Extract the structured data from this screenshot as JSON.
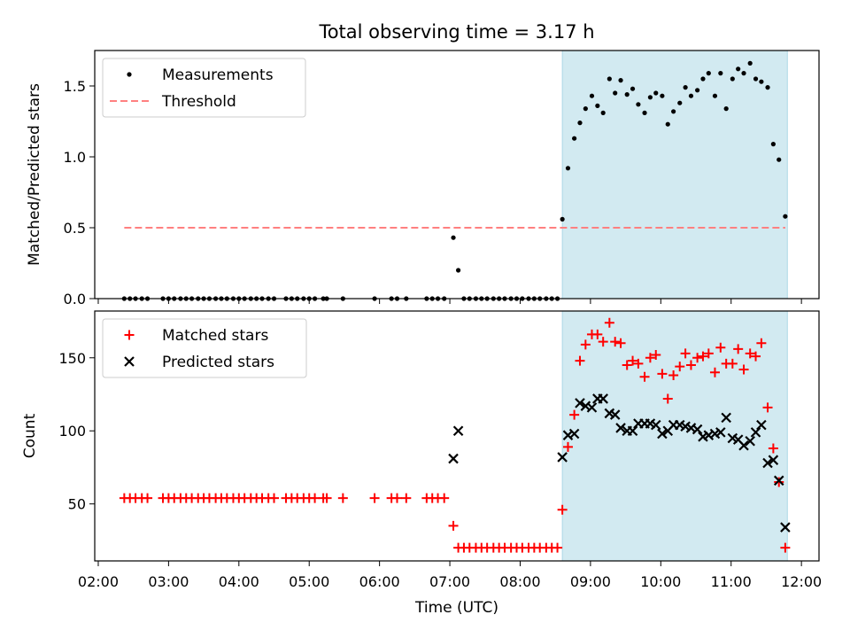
{
  "figure": {
    "title": "Total observing time = 3.17 h",
    "shared_xlabel": "Time (UTC)",
    "x_ticks": [
      "02:00",
      "03:00",
      "04:00",
      "05:00",
      "06:00",
      "07:00",
      "08:00",
      "09:00",
      "10:00",
      "11:00",
      "12:00"
    ]
  },
  "colors": {
    "shade": "#add8e6",
    "measurement": "#000000",
    "threshold": "#ff8080",
    "matched": "#ff0000",
    "predicted": "#000000"
  },
  "chart_data": [
    {
      "type": "scatter",
      "title": "Total observing time = 3.17 h",
      "xlabel": "",
      "ylabel": "Matched/Predicted stars",
      "x_unit": "UTC time (hours)",
      "xlim": [
        1.95,
        12.25
      ],
      "ylim": [
        0.0,
        1.75
      ],
      "y_ticks": [
        0.0,
        0.5,
        1.0,
        1.5
      ],
      "y_tick_labels": [
        "0.0",
        "0.5",
        "1.0",
        "1.5"
      ],
      "shaded_span": [
        8.6,
        11.8
      ],
      "legend_position": "upper-left",
      "grid": false,
      "series": [
        {
          "name": "Measurements",
          "kind": "scatter",
          "points": [
            [
              2.37,
              0
            ],
            [
              2.45,
              0
            ],
            [
              2.53,
              0
            ],
            [
              2.62,
              0
            ],
            [
              2.7,
              0
            ],
            [
              2.92,
              0
            ],
            [
              3.0,
              0
            ],
            [
              3.08,
              0
            ],
            [
              3.17,
              0
            ],
            [
              3.25,
              0
            ],
            [
              3.33,
              0
            ],
            [
              3.42,
              0
            ],
            [
              3.5,
              0
            ],
            [
              3.58,
              0
            ],
            [
              3.67,
              0
            ],
            [
              3.75,
              0
            ],
            [
              3.83,
              0
            ],
            [
              3.92,
              0
            ],
            [
              4.0,
              0
            ],
            [
              4.08,
              0
            ],
            [
              4.17,
              0
            ],
            [
              4.25,
              0
            ],
            [
              4.33,
              0
            ],
            [
              4.42,
              0
            ],
            [
              4.5,
              0
            ],
            [
              4.67,
              0
            ],
            [
              4.75,
              0
            ],
            [
              4.83,
              0
            ],
            [
              4.92,
              0
            ],
            [
              5.0,
              0
            ],
            [
              5.08,
              0
            ],
            [
              5.2,
              0
            ],
            [
              5.25,
              0
            ],
            [
              5.48,
              0
            ],
            [
              5.93,
              0
            ],
            [
              6.17,
              0
            ],
            [
              6.25,
              0
            ],
            [
              6.38,
              0
            ],
            [
              6.67,
              0
            ],
            [
              6.75,
              0
            ],
            [
              6.83,
              0
            ],
            [
              6.92,
              0
            ],
            [
              7.05,
              0.43
            ],
            [
              7.12,
              0.2
            ],
            [
              7.2,
              0
            ],
            [
              7.28,
              0
            ],
            [
              7.37,
              0
            ],
            [
              7.45,
              0
            ],
            [
              7.53,
              0
            ],
            [
              7.62,
              0
            ],
            [
              7.7,
              0
            ],
            [
              7.78,
              0
            ],
            [
              7.87,
              0
            ],
            [
              7.95,
              0
            ],
            [
              8.03,
              0
            ],
            [
              8.12,
              0
            ],
            [
              8.2,
              0
            ],
            [
              8.28,
              0
            ],
            [
              8.37,
              0
            ],
            [
              8.45,
              0
            ],
            [
              8.53,
              0
            ],
            [
              8.6,
              0.56
            ],
            [
              8.68,
              0.92
            ],
            [
              8.77,
              1.13
            ],
            [
              8.85,
              1.24
            ],
            [
              8.93,
              1.34
            ],
            [
              9.02,
              1.43
            ],
            [
              9.1,
              1.36
            ],
            [
              9.18,
              1.31
            ],
            [
              9.27,
              1.55
            ],
            [
              9.35,
              1.45
            ],
            [
              9.43,
              1.54
            ],
            [
              9.52,
              1.44
            ],
            [
              9.6,
              1.48
            ],
            [
              9.68,
              1.37
            ],
            [
              9.77,
              1.31
            ],
            [
              9.85,
              1.42
            ],
            [
              9.93,
              1.45
            ],
            [
              10.02,
              1.43
            ],
            [
              10.1,
              1.23
            ],
            [
              10.18,
              1.32
            ],
            [
              10.27,
              1.38
            ],
            [
              10.35,
              1.49
            ],
            [
              10.43,
              1.43
            ],
            [
              10.52,
              1.47
            ],
            [
              10.6,
              1.55
            ],
            [
              10.68,
              1.59
            ],
            [
              10.77,
              1.43
            ],
            [
              10.85,
              1.59
            ],
            [
              10.93,
              1.34
            ],
            [
              11.02,
              1.55
            ],
            [
              11.1,
              1.62
            ],
            [
              11.18,
              1.59
            ],
            [
              11.27,
              1.66
            ],
            [
              11.35,
              1.55
            ],
            [
              11.43,
              1.53
            ],
            [
              11.52,
              1.49
            ],
            [
              11.6,
              1.09
            ],
            [
              11.68,
              0.98
            ],
            [
              11.77,
              0.58
            ]
          ]
        },
        {
          "name": "Threshold",
          "kind": "dashed-line",
          "points": [
            [
              2.37,
              0.5
            ],
            [
              11.77,
              0.5
            ]
          ]
        }
      ]
    },
    {
      "type": "scatter",
      "title": "",
      "xlabel": "Time (UTC)",
      "ylabel": "Count",
      "x_unit": "UTC time (hours)",
      "xlim": [
        1.95,
        12.25
      ],
      "ylim": [
        11,
        182
      ],
      "y_ticks": [
        50,
        100,
        150
      ],
      "y_tick_labels": [
        "50",
        "100",
        "150"
      ],
      "shaded_span": [
        8.6,
        11.8
      ],
      "legend_position": "upper-left",
      "grid": false,
      "series": [
        {
          "name": "Matched stars",
          "marker": "plus",
          "points": [
            [
              2.37,
              54
            ],
            [
              2.45,
              54
            ],
            [
              2.53,
              54
            ],
            [
              2.62,
              54
            ],
            [
              2.7,
              54
            ],
            [
              2.92,
              54
            ],
            [
              3.0,
              54
            ],
            [
              3.08,
              54
            ],
            [
              3.17,
              54
            ],
            [
              3.25,
              54
            ],
            [
              3.33,
              54
            ],
            [
              3.42,
              54
            ],
            [
              3.5,
              54
            ],
            [
              3.58,
              54
            ],
            [
              3.67,
              54
            ],
            [
              3.75,
              54
            ],
            [
              3.83,
              54
            ],
            [
              3.92,
              54
            ],
            [
              4.0,
              54
            ],
            [
              4.08,
              54
            ],
            [
              4.17,
              54
            ],
            [
              4.25,
              54
            ],
            [
              4.33,
              54
            ],
            [
              4.42,
              54
            ],
            [
              4.5,
              54
            ],
            [
              4.67,
              54
            ],
            [
              4.75,
              54
            ],
            [
              4.83,
              54
            ],
            [
              4.92,
              54
            ],
            [
              5.0,
              54
            ],
            [
              5.08,
              54
            ],
            [
              5.2,
              54
            ],
            [
              5.25,
              54
            ],
            [
              5.48,
              54
            ],
            [
              5.93,
              54
            ],
            [
              6.17,
              54
            ],
            [
              6.25,
              54
            ],
            [
              6.38,
              54
            ],
            [
              6.67,
              54
            ],
            [
              6.75,
              54
            ],
            [
              6.83,
              54
            ],
            [
              6.92,
              54
            ],
            [
              7.05,
              35
            ],
            [
              7.12,
              20
            ],
            [
              7.2,
              20
            ],
            [
              7.28,
              20
            ],
            [
              7.37,
              20
            ],
            [
              7.45,
              20
            ],
            [
              7.53,
              20
            ],
            [
              7.62,
              20
            ],
            [
              7.7,
              20
            ],
            [
              7.78,
              20
            ],
            [
              7.87,
              20
            ],
            [
              7.95,
              20
            ],
            [
              8.03,
              20
            ],
            [
              8.12,
              20
            ],
            [
              8.2,
              20
            ],
            [
              8.28,
              20
            ],
            [
              8.37,
              20
            ],
            [
              8.45,
              20
            ],
            [
              8.53,
              20
            ],
            [
              8.6,
              46
            ],
            [
              8.68,
              89
            ],
            [
              8.77,
              111
            ],
            [
              8.85,
              148
            ],
            [
              8.93,
              159
            ],
            [
              9.02,
              166
            ],
            [
              9.1,
              166
            ],
            [
              9.18,
              161
            ],
            [
              9.27,
              174
            ],
            [
              9.35,
              161
            ],
            [
              9.43,
              160
            ],
            [
              9.52,
              145
            ],
            [
              9.6,
              148
            ],
            [
              9.68,
              146
            ],
            [
              9.77,
              137
            ],
            [
              9.85,
              150
            ],
            [
              9.93,
              152
            ],
            [
              10.02,
              139
            ],
            [
              10.1,
              122
            ],
            [
              10.18,
              138
            ],
            [
              10.27,
              144
            ],
            [
              10.35,
              153
            ],
            [
              10.43,
              145
            ],
            [
              10.52,
              150
            ],
            [
              10.6,
              151
            ],
            [
              10.68,
              153
            ],
            [
              10.77,
              140
            ],
            [
              10.85,
              157
            ],
            [
              10.93,
              146
            ],
            [
              11.02,
              146
            ],
            [
              11.1,
              156
            ],
            [
              11.18,
              142
            ],
            [
              11.27,
              153
            ],
            [
              11.35,
              151
            ],
            [
              11.43,
              160
            ],
            [
              11.52,
              116
            ],
            [
              11.6,
              88
            ],
            [
              11.68,
              65
            ],
            [
              11.77,
              20
            ]
          ]
        },
        {
          "name": "Predicted stars",
          "marker": "x",
          "points": [
            [
              7.05,
              81
            ],
            [
              7.12,
              100
            ],
            [
              8.6,
              82
            ],
            [
              8.68,
              97
            ],
            [
              8.77,
              98
            ],
            [
              8.85,
              119
            ],
            [
              8.93,
              117
            ],
            [
              9.02,
              116
            ],
            [
              9.1,
              122
            ],
            [
              9.18,
              122
            ],
            [
              9.27,
              112
            ],
            [
              9.35,
              111
            ],
            [
              9.43,
              102
            ],
            [
              9.52,
              100
            ],
            [
              9.6,
              100
            ],
            [
              9.68,
              105
            ],
            [
              9.77,
              105
            ],
            [
              9.85,
              105
            ],
            [
              9.93,
              104
            ],
            [
              10.02,
              98
            ],
            [
              10.1,
              100
            ],
            [
              10.18,
              104
            ],
            [
              10.27,
              104
            ],
            [
              10.35,
              103
            ],
            [
              10.43,
              102
            ],
            [
              10.52,
              101
            ],
            [
              10.6,
              96
            ],
            [
              10.68,
              97
            ],
            [
              10.77,
              98
            ],
            [
              10.85,
              99
            ],
            [
              10.93,
              109
            ],
            [
              11.02,
              95
            ],
            [
              11.1,
              94
            ],
            [
              11.18,
              90
            ],
            [
              11.27,
              93
            ],
            [
              11.35,
              99
            ],
            [
              11.43,
              104
            ],
            [
              11.52,
              78
            ],
            [
              11.6,
              80
            ],
            [
              11.68,
              66
            ],
            [
              11.77,
              34
            ]
          ]
        }
      ]
    }
  ]
}
